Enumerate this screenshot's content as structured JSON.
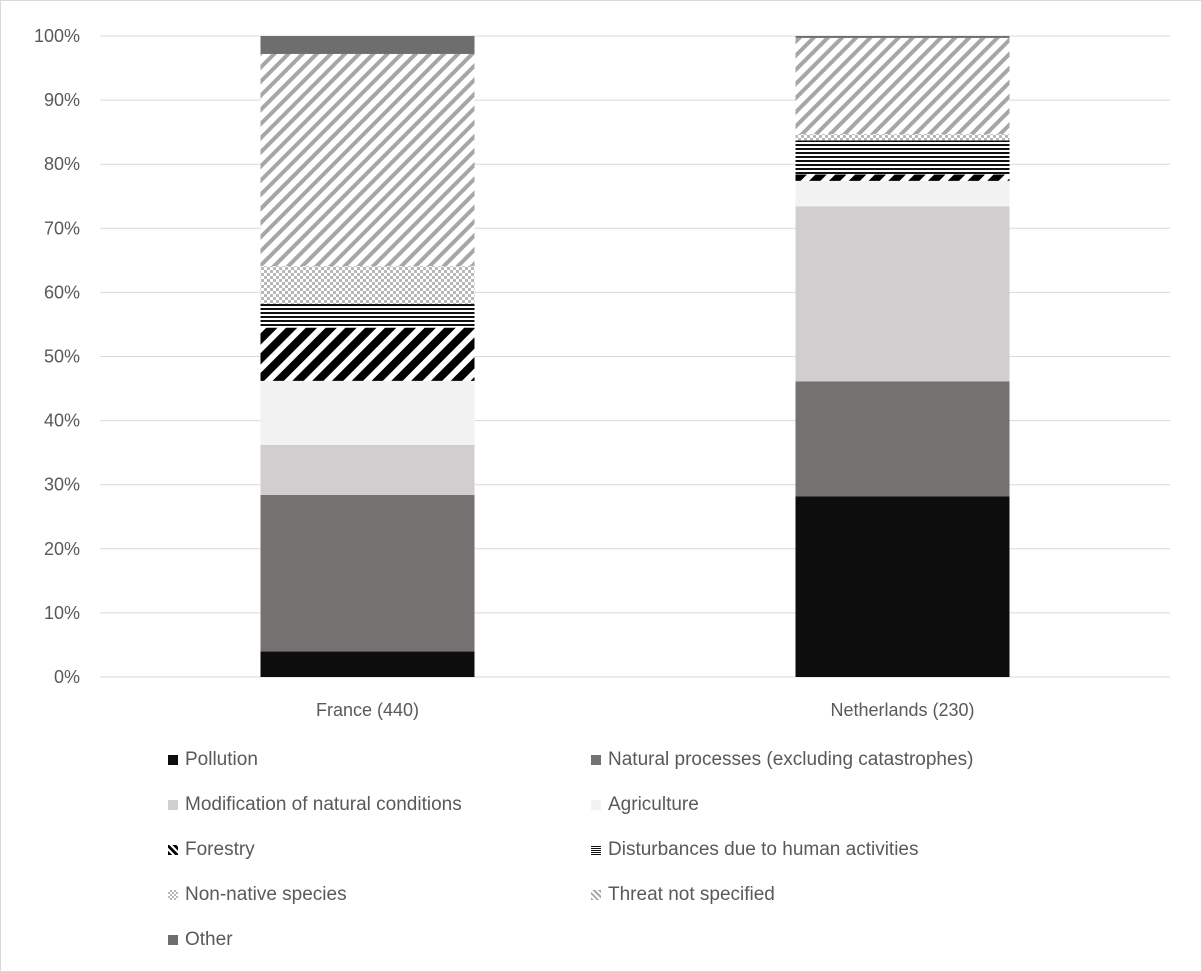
{
  "chart_data": {
    "type": "bar",
    "stacked": true,
    "percent": true,
    "title": "",
    "xlabel": "",
    "ylabel": "",
    "ylim": [
      0,
      100
    ],
    "yticks": [
      "0%",
      "10%",
      "20%",
      "30%",
      "40%",
      "50%",
      "60%",
      "70%",
      "80%",
      "90%",
      "100%"
    ],
    "grid": true,
    "legend_position": "bottom",
    "categories": [
      "France (440)",
      "Netherlands (230)"
    ],
    "series": [
      {
        "name": "Pollution",
        "values": [
          4,
          28.2
        ],
        "pattern": "solid-black"
      },
      {
        "name": "Natural processes (excluding catastrophes)",
        "values": [
          24.4,
          17.9
        ],
        "pattern": "solid-darkgray"
      },
      {
        "name": "Modification of natural conditions",
        "values": [
          7.8,
          27.3
        ],
        "pattern": "solid-lightgray"
      },
      {
        "name": "Agriculture",
        "values": [
          10,
          4
        ],
        "pattern": "solid-verylight"
      },
      {
        "name": "Forestry",
        "values": [
          8.3,
          1
        ],
        "pattern": "diagonal-black"
      },
      {
        "name": "Disturbances due to human activities",
        "values": [
          3.7,
          5.3
        ],
        "pattern": "horizontal-lines"
      },
      {
        "name": "Non-native species",
        "values": [
          5.9,
          1
        ],
        "pattern": "checker"
      },
      {
        "name": "Threat not specified",
        "values": [
          33.1,
          15
        ],
        "pattern": "diagonal-gray"
      },
      {
        "name": "Other",
        "values": [
          2.8,
          0.3
        ],
        "pattern": "solid-medium"
      }
    ]
  }
}
